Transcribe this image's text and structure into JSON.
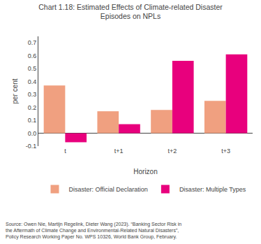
{
  "chart_data": {
    "type": "bar",
    "title": "Chart 1.18: Estimated Effects of Climate-related Disaster\nEpisodes on NPLs",
    "xlabel": "Horizon",
    "ylabel": "per cent",
    "categories": [
      "t",
      "t+1",
      "t+2",
      "t+3"
    ],
    "series": [
      {
        "name": "Disaster: Official Declaration",
        "color": "#F0A080",
        "values": [
          0.37,
          0.17,
          0.18,
          0.25
        ]
      },
      {
        "name": "Disaster: Multiple Types",
        "color": "#E8007D",
        "values": [
          -0.07,
          0.07,
          0.56,
          0.61
        ]
      }
    ],
    "ylim": [
      -0.1,
      0.75
    ],
    "yticks": [
      -0.1,
      {
        "value": 0,
        "label": "0.0"
      },
      0.1,
      0.2,
      0.3,
      0.4,
      0.5,
      0.6,
      0.7
    ],
    "grid": false,
    "legend": "bottom",
    "annotations": [
      "Source: Owen Nie, Martijn Regelink, Dieter Wang (2023). “Banking Sector Risk in\nthe Aftermath of Climate Change and Environmental-Related Natural Disasters”,\nPolicy Research Working Paper No. WPS 10326, World Bank Group, February."
    ]
  }
}
